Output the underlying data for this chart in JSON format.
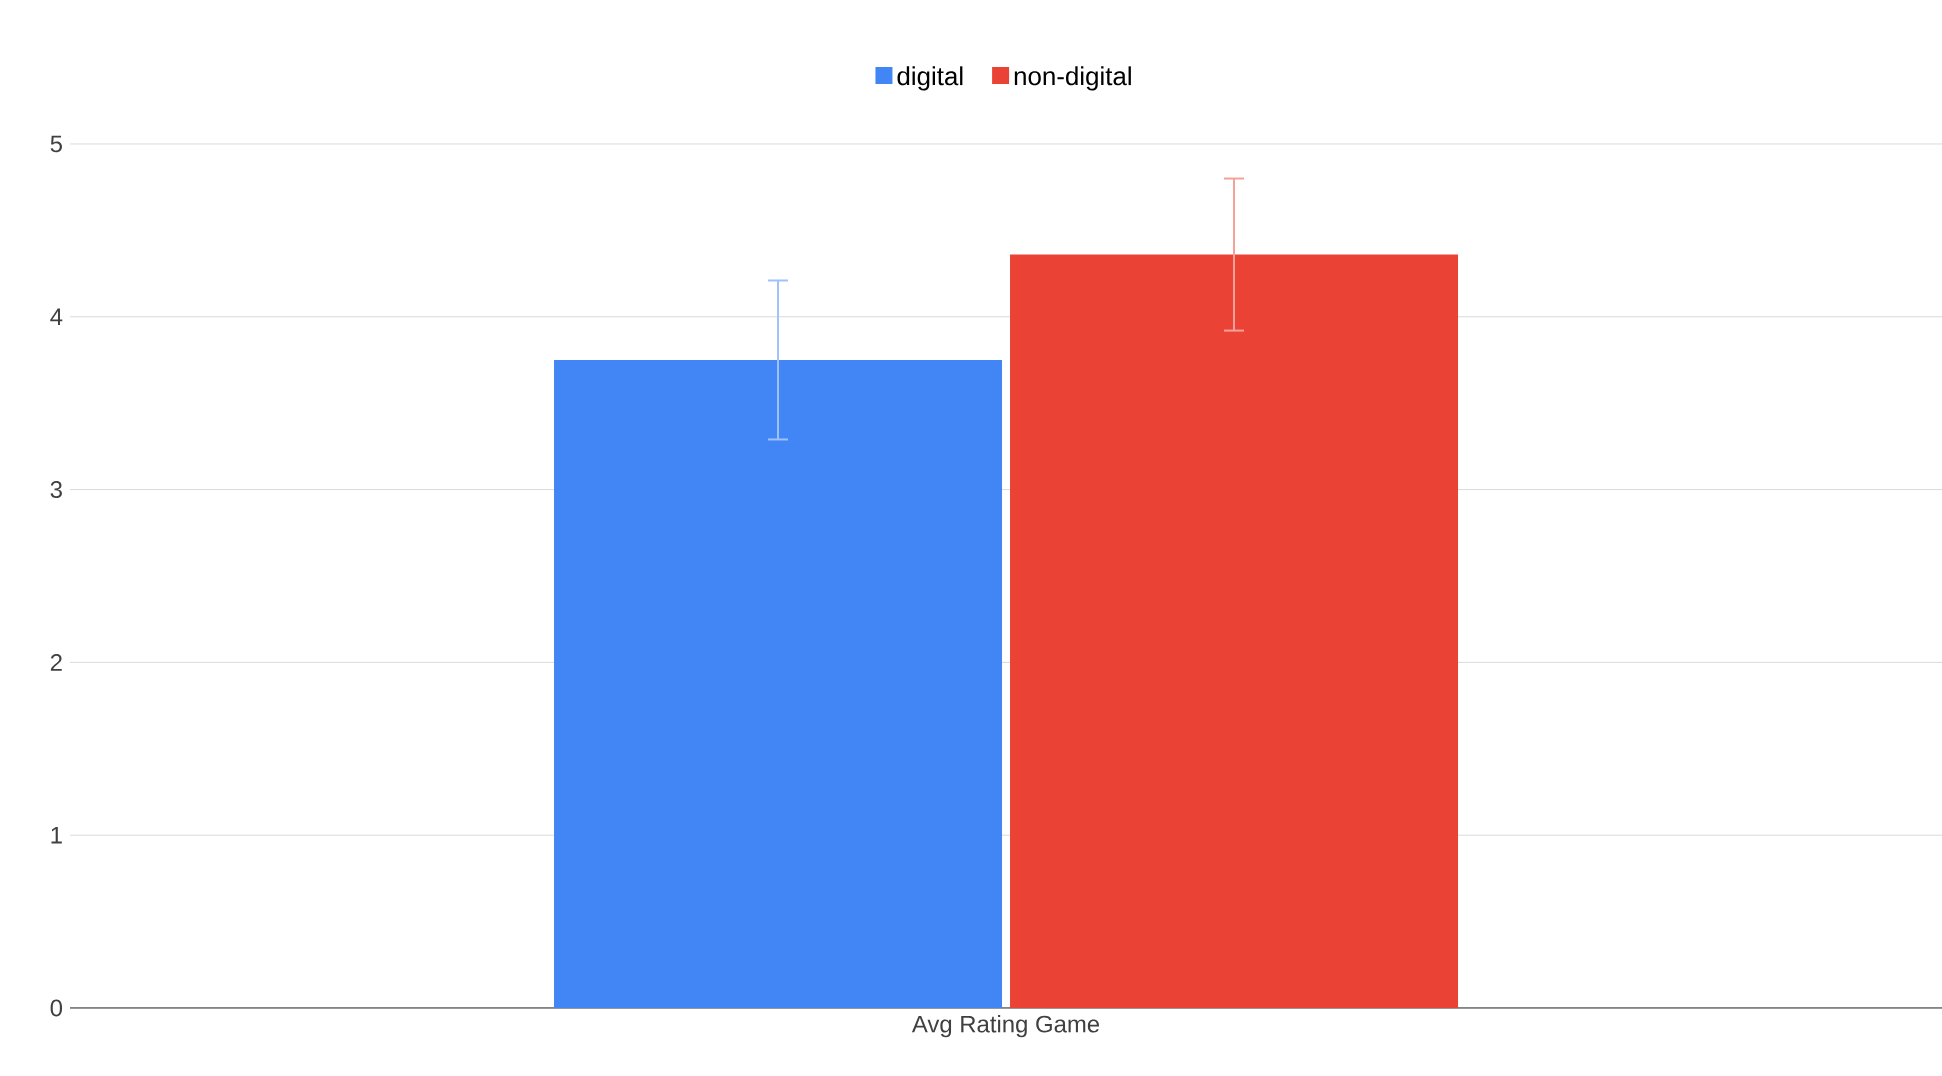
{
  "chart_data": {
    "type": "bar",
    "categories": [
      "Avg Rating Game"
    ],
    "series": [
      {
        "name": "digital",
        "color": "#4285f4",
        "values": [
          3.75
        ],
        "errors": [
          0.46
        ]
      },
      {
        "name": "non-digital",
        "color": "#ea4335",
        "values": [
          4.36
        ],
        "errors": [
          0.44
        ]
      }
    ],
    "ylim": [
      0,
      5
    ],
    "yticks": [
      0,
      1,
      2,
      3,
      4,
      5
    ],
    "grid": "y",
    "legend": "top"
  }
}
